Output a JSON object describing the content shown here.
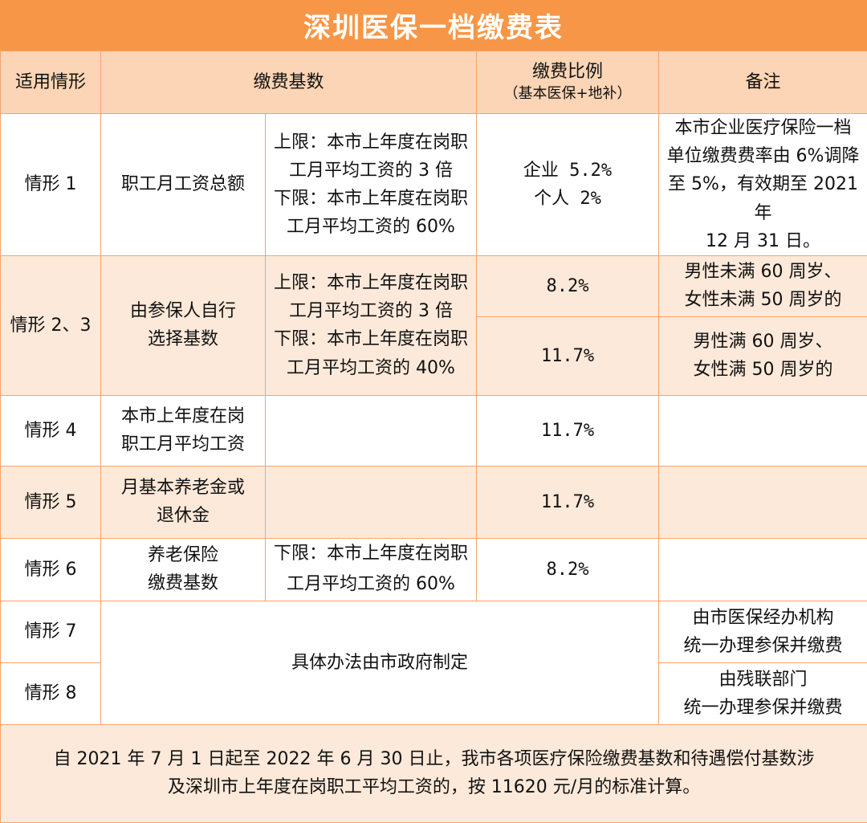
{
  "title": "深圳医保一档缴费表",
  "header": {
    "col1": "适用情形",
    "col2": "缴费基数",
    "col3_main": "缴费比例",
    "col3_sub": "（基本医保+地补）",
    "col4": "备注"
  },
  "rows": {
    "r1": {
      "case": "情形 1",
      "base": "职工月工资总额",
      "limits": [
        "上限：本市上年度在岗职",
        "工月平均工资的 3 倍",
        "下限：本市上年度在岗职",
        "工月平均工资的 60%"
      ],
      "ratio": [
        "企业 5.2%",
        "个人 2%"
      ],
      "note": [
        "本市企业医疗保险一档",
        "单位缴费费率由 6%调降",
        "至 5%，有效期至 2021 年",
        "12 月 31 日。"
      ]
    },
    "r23": {
      "case": "情形 2、3",
      "base": [
        "由参保人自行",
        "选择基数"
      ],
      "limits": [
        "上限：本市上年度在岗职",
        "工月平均工资的 3 倍",
        "下限：本市上年度在岗职",
        "工月平均工资的 40%"
      ],
      "ratio_a": "8.2%",
      "note_a": [
        "男性未满 60 周岁、",
        "女性未满 50 周岁的"
      ],
      "ratio_b": "11.7%",
      "note_b": [
        "男性满 60 周岁、",
        "女性满 50 周岁的"
      ]
    },
    "r4": {
      "case": "情形 4",
      "base": [
        "本市上年度在岗",
        "职工月平均工资"
      ],
      "ratio": "11.7%"
    },
    "r5": {
      "case": "情形 5",
      "base": [
        "月基本养老金或",
        "退休金"
      ],
      "ratio": "11.7%"
    },
    "r6": {
      "case": "情形 6",
      "base": [
        "养老保险",
        "缴费基数"
      ],
      "limits": [
        "下限：本市上年度在岗职",
        "工月平均工资的 60%"
      ],
      "ratio": "8.2%"
    },
    "r7": {
      "case": "情形 7",
      "merged": "具体办法由市政府制定",
      "note": [
        "由市医保经办机构",
        "统一办理参保并缴费"
      ]
    },
    "r8": {
      "case": "情形 8",
      "note": [
        "由残联部门",
        "统一办理参保并缴费"
      ]
    }
  },
  "footer": [
    "自 2021 年 7 月 1 日起至 2022 年 6 月 30 日止，我市各项医疗保险缴费基数和待遇偿付基数涉",
    "及深圳市上年度在岗职工平均工资的，按 11620 元/月的标准计算。"
  ],
  "colors": {
    "header_bar": "#f79646",
    "header_row": "#fbd5b5",
    "shade_row": "#fde9d9",
    "border": "#f4a46b"
  }
}
